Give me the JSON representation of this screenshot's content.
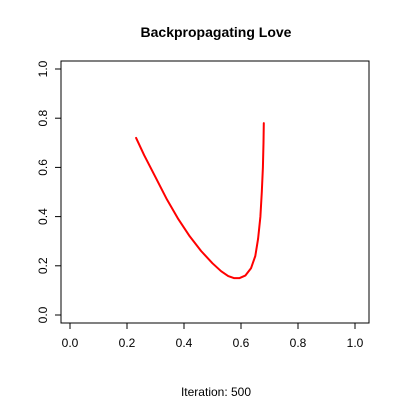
{
  "chart_data": {
    "type": "line",
    "title": "Backpropagating Love",
    "xlabel": "Iteration: 500",
    "ylabel": "",
    "xlim": [
      0,
      1
    ],
    "ylim": [
      0,
      1
    ],
    "x_ticks": [
      "0.0",
      "0.2",
      "0.4",
      "0.6",
      "0.8",
      "1.0"
    ],
    "y_ticks": [
      "0.0",
      "0.2",
      "0.4",
      "0.6",
      "0.8",
      "1.0"
    ],
    "grid": false,
    "legend": "none",
    "series": [
      {
        "color": "#ff0000",
        "points": [
          [
            0.232,
            0.72
          ],
          [
            0.26,
            0.65
          ],
          [
            0.3,
            0.56
          ],
          [
            0.34,
            0.47
          ],
          [
            0.38,
            0.39
          ],
          [
            0.42,
            0.32
          ],
          [
            0.46,
            0.26
          ],
          [
            0.5,
            0.21
          ],
          [
            0.53,
            0.178
          ],
          [
            0.555,
            0.158
          ],
          [
            0.575,
            0.15
          ],
          [
            0.595,
            0.15
          ],
          [
            0.615,
            0.16
          ],
          [
            0.635,
            0.19
          ],
          [
            0.65,
            0.24
          ],
          [
            0.66,
            0.31
          ],
          [
            0.668,
            0.4
          ],
          [
            0.673,
            0.5
          ],
          [
            0.677,
            0.6
          ],
          [
            0.679,
            0.7
          ],
          [
            0.68,
            0.78
          ]
        ]
      }
    ]
  }
}
